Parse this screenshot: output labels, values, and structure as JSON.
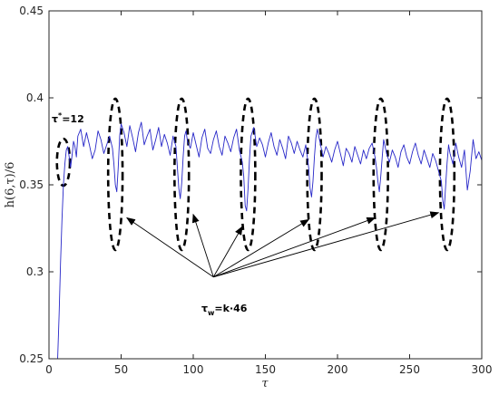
{
  "chart_data": {
    "type": "line",
    "xlabel": "τ",
    "ylabel": "h(6,τ)/6",
    "xlim": [
      0,
      300
    ],
    "ylim": [
      0.25,
      0.45
    ],
    "xticks": [
      0,
      50,
      100,
      150,
      200,
      250,
      300
    ],
    "yticks": [
      0.25,
      0.3,
      0.35,
      0.4,
      0.45
    ],
    "xtick_labels": [
      "0",
      "50",
      "100",
      "150",
      "200",
      "250",
      "300"
    ],
    "ytick_labels": [
      "0.25",
      "0.3",
      "0.35",
      "0.4",
      "0.45"
    ],
    "grid": false,
    "line_color": "#2727c8",
    "series": [
      {
        "x": [
          6,
          7,
          8,
          9,
          10,
          11,
          12,
          13,
          14,
          15,
          16,
          17,
          18,
          19,
          20,
          22,
          24,
          26,
          28,
          30,
          32,
          34,
          36,
          38,
          40,
          42,
          44,
          45,
          46,
          47,
          48,
          49,
          50,
          52,
          54,
          56,
          58,
          60,
          62,
          64,
          66,
          68,
          70,
          72,
          74,
          76,
          78,
          80,
          82,
          84,
          86,
          88,
          89,
          90,
          91,
          92,
          93,
          94,
          95,
          96,
          98,
          100,
          102,
          104,
          106,
          108,
          110,
          112,
          114,
          116,
          118,
          120,
          122,
          124,
          126,
          128,
          130,
          132,
          134,
          135,
          136,
          137,
          138,
          139,
          140,
          142,
          144,
          146,
          148,
          150,
          152,
          154,
          156,
          158,
          160,
          162,
          164,
          166,
          168,
          170,
          172,
          174,
          176,
          178,
          180,
          181,
          182,
          183,
          184,
          185,
          186,
          188,
          190,
          192,
          194,
          196,
          198,
          200,
          202,
          204,
          206,
          208,
          210,
          212,
          214,
          216,
          218,
          220,
          222,
          224,
          226,
          227,
          228,
          229,
          230,
          231,
          232,
          234,
          236,
          238,
          240,
          242,
          244,
          246,
          248,
          250,
          252,
          254,
          256,
          258,
          260,
          262,
          264,
          266,
          268,
          270,
          272,
          273,
          274,
          275,
          276,
          277,
          278,
          280,
          282,
          284,
          286,
          288,
          290,
          292,
          294,
          296,
          298,
          300
        ],
        "y": [
          0.25,
          0.275,
          0.305,
          0.33,
          0.35,
          0.362,
          0.37,
          0.372,
          0.366,
          0.36,
          0.367,
          0.375,
          0.372,
          0.366,
          0.378,
          0.382,
          0.372,
          0.38,
          0.373,
          0.365,
          0.37,
          0.381,
          0.376,
          0.368,
          0.373,
          0.378,
          0.371,
          0.362,
          0.35,
          0.346,
          0.36,
          0.378,
          0.385,
          0.38,
          0.372,
          0.384,
          0.377,
          0.369,
          0.38,
          0.386,
          0.373,
          0.378,
          0.382,
          0.37,
          0.376,
          0.383,
          0.372,
          0.379,
          0.374,
          0.367,
          0.378,
          0.372,
          0.36,
          0.348,
          0.342,
          0.351,
          0.366,
          0.378,
          0.381,
          0.375,
          0.371,
          0.38,
          0.373,
          0.366,
          0.377,
          0.382,
          0.371,
          0.368,
          0.376,
          0.381,
          0.372,
          0.367,
          0.378,
          0.374,
          0.369,
          0.377,
          0.382,
          0.37,
          0.363,
          0.355,
          0.338,
          0.335,
          0.348,
          0.365,
          0.378,
          0.383,
          0.372,
          0.377,
          0.373,
          0.366,
          0.374,
          0.38,
          0.372,
          0.367,
          0.376,
          0.371,
          0.365,
          0.378,
          0.374,
          0.368,
          0.375,
          0.37,
          0.366,
          0.373,
          0.36,
          0.348,
          0.343,
          0.352,
          0.366,
          0.377,
          0.382,
          0.374,
          0.366,
          0.372,
          0.368,
          0.363,
          0.37,
          0.375,
          0.368,
          0.361,
          0.371,
          0.368,
          0.363,
          0.372,
          0.367,
          0.362,
          0.37,
          0.365,
          0.371,
          0.374,
          0.366,
          0.36,
          0.352,
          0.346,
          0.355,
          0.366,
          0.376,
          0.368,
          0.363,
          0.37,
          0.366,
          0.36,
          0.369,
          0.373,
          0.366,
          0.362,
          0.369,
          0.374,
          0.367,
          0.362,
          0.37,
          0.365,
          0.36,
          0.368,
          0.364,
          0.358,
          0.352,
          0.341,
          0.336,
          0.35,
          0.363,
          0.373,
          0.368,
          0.362,
          0.374,
          0.366,
          0.36,
          0.37,
          0.347,
          0.358,
          0.376,
          0.365,
          0.369,
          0.364
        ]
      }
    ],
    "annotations": {
      "tau_star": {
        "base": "τ",
        "sup": "*",
        "rest": "=12",
        "anchor": [
          1,
          0.387
        ]
      },
      "tau_w": {
        "base": "τ",
        "sub": "w",
        "rest": "=k·46",
        "anchor": [
          107,
          0.295
        ]
      }
    },
    "dashed_ellipses": [
      {
        "cx": 10,
        "cy": 0.363,
        "rx": 4.5,
        "ry": 0.0135
      },
      {
        "cx": 46,
        "cy": 0.356,
        "rx": 5,
        "ry": 0.0435
      },
      {
        "cx": 92,
        "cy": 0.356,
        "rx": 5,
        "ry": 0.0435
      },
      {
        "cx": 138,
        "cy": 0.356,
        "rx": 5,
        "ry": 0.0435
      },
      {
        "cx": 184,
        "cy": 0.356,
        "rx": 5,
        "ry": 0.0435
      },
      {
        "cx": 230,
        "cy": 0.356,
        "rx": 5,
        "ry": 0.0435
      },
      {
        "cx": 276,
        "cy": 0.356,
        "rx": 5,
        "ry": 0.0435
      }
    ],
    "arrows": [
      {
        "from": [
          114,
          0.297
        ],
        "to": [
          54,
          0.331
        ]
      },
      {
        "from": [
          114,
          0.297
        ],
        "to": [
          100,
          0.333
        ]
      },
      {
        "from": [
          114,
          0.297
        ],
        "to": [
          134,
          0.326
        ]
      },
      {
        "from": [
          114,
          0.297
        ],
        "to": [
          180,
          0.33
        ]
      },
      {
        "from": [
          114,
          0.297
        ],
        "to": [
          226,
          0.331
        ]
      },
      {
        "from": [
          114,
          0.297
        ],
        "to": [
          270,
          0.334
        ]
      }
    ]
  }
}
